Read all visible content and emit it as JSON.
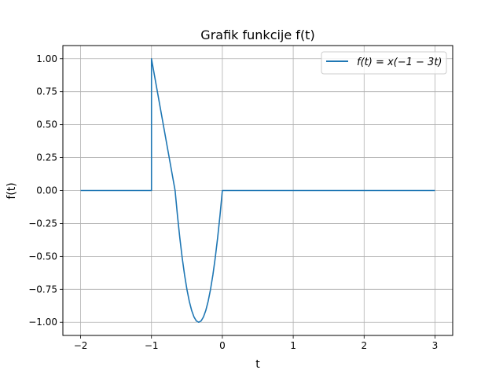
{
  "chart_data": {
    "type": "line",
    "title": "Grafik funkcije f(t)",
    "xlabel": "t",
    "ylabel": "f(t)",
    "xlim": [
      -2.25,
      3.25
    ],
    "ylim": [
      -1.1,
      1.1
    ],
    "x_ticks": [
      -2,
      -1,
      0,
      1,
      2,
      3
    ],
    "x_tick_labels": [
      "−2",
      "−1",
      "0",
      "1",
      "2",
      "3"
    ],
    "y_ticks": [
      1.0,
      0.75,
      0.5,
      0.25,
      0.0,
      -0.25,
      -0.5,
      -0.75,
      -1.0
    ],
    "y_tick_labels": [
      "1.00",
      "0.75",
      "0.50",
      "0.25",
      "0.00",
      "−0.25",
      "−0.50",
      "−0.75",
      "−1.00"
    ],
    "grid": true,
    "legend_position": "top-right",
    "series": [
      {
        "name": "f(t) = x(−1 − 3t)",
        "color": "#1f77b4",
        "points": [
          [
            -2.0,
            0.0
          ],
          [
            -1.0,
            0.0
          ],
          [
            -1.0,
            1.0
          ],
          [
            -0.6667,
            0.0
          ],
          [
            -0.6333,
            -0.19
          ],
          [
            -0.6,
            -0.36
          ],
          [
            -0.5667,
            -0.51
          ],
          [
            -0.5333,
            -0.64
          ],
          [
            -0.5,
            -0.75
          ],
          [
            -0.4667,
            -0.84
          ],
          [
            -0.4333,
            -0.91
          ],
          [
            -0.4,
            -0.96
          ],
          [
            -0.3667,
            -0.99
          ],
          [
            -0.3333,
            -1.0
          ],
          [
            -0.3,
            -0.99
          ],
          [
            -0.2667,
            -0.96
          ],
          [
            -0.2333,
            -0.91
          ],
          [
            -0.2,
            -0.84
          ],
          [
            -0.1667,
            -0.75
          ],
          [
            -0.1333,
            -0.64
          ],
          [
            -0.1,
            -0.51
          ],
          [
            -0.0667,
            -0.36
          ],
          [
            -0.0333,
            -0.19
          ],
          [
            0.0,
            0.0
          ],
          [
            3.0,
            0.0
          ]
        ]
      }
    ]
  }
}
